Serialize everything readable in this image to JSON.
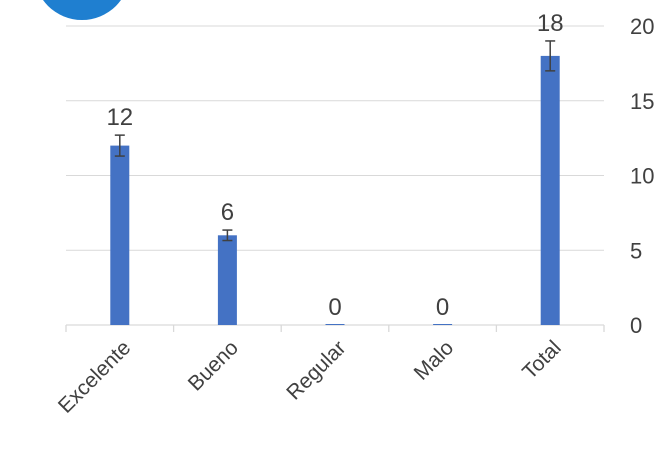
{
  "chart_data": {
    "type": "bar",
    "categories": [
      "Excelente",
      "Bueno",
      "Regular",
      "Malo",
      "Total"
    ],
    "values": [
      12,
      6,
      0,
      0,
      18
    ],
    "error_bars": [
      0.7,
      0.35,
      0,
      0,
      1.0
    ],
    "data_labels": [
      "12",
      "6",
      "0",
      "0",
      "18"
    ],
    "y_ticks": [
      "0",
      "5",
      "10",
      "15",
      "20"
    ],
    "ylim": [
      0,
      20
    ],
    "y_axis_side": "right",
    "grid": true,
    "legend": "none",
    "colors": {
      "bar": "#4472C4",
      "grid": "#D9D9D9",
      "error_bar": "#404040",
      "text": "#404040",
      "corner_badge": "#1F7FD0"
    }
  }
}
